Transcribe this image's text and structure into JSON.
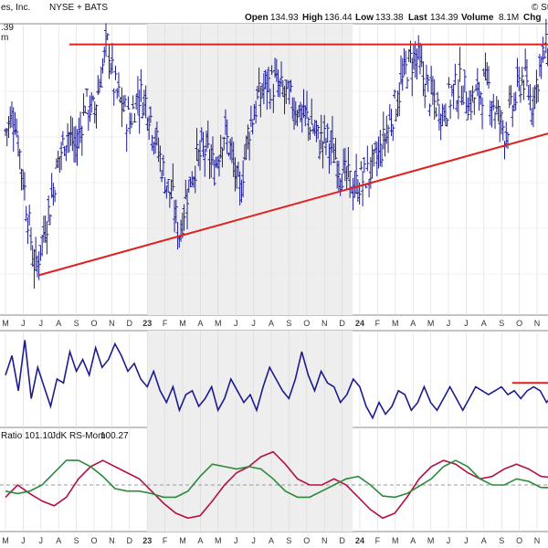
{
  "header": {
    "company": "es, Inc.",
    "exchange": "NYSE + BATS",
    "open_label": "Open",
    "open": "134.93",
    "high_label": "High",
    "high": "136.44",
    "low_label": "Low",
    "low": "133.38",
    "last_label": "Last",
    "last": "134.39",
    "volume_label": "Volume",
    "volume": "8.1M",
    "chg_label": "Chg",
    "watermark": "© St",
    "price_tag": ".39",
    "panel_tag": "m"
  },
  "indicator_legend": {
    "ratio_label": "Ratio",
    "ratio_value": "101.10",
    "mom_label": "JdK RS-Mom",
    "mom_value": "100.27"
  },
  "month_labels": [
    "M",
    "J",
    "J",
    "A",
    "S",
    "O",
    "N",
    "D",
    "23",
    "F",
    "M",
    "A",
    "M",
    "J",
    "J",
    "A",
    "S",
    "O",
    "N",
    "D",
    "24",
    "F",
    "M",
    "A",
    "M",
    "J",
    "J",
    "A",
    "S",
    "O",
    "N"
  ],
  "colors": {
    "price_bars": "#1c1c8f",
    "trendline": "#e02020",
    "ratio_line": "#b3123f",
    "momentum_line": "#2a8a3a",
    "shade": "#eeeeee"
  },
  "chart_data": [
    {
      "type": "ohlc",
      "x": [
        "2022-05",
        "2022-06",
        "2022-07",
        "2022-08",
        "2022-09",
        "2022-10",
        "2022-11",
        "2022-12",
        "2023-01",
        "2023-02",
        "2023-03",
        "2023-04",
        "2023-05",
        "2023-06",
        "2023-07",
        "2023-08",
        "2023-09",
        "2023-10",
        "2023-11",
        "2023-12",
        "2024-01",
        "2024-02",
        "2024-03",
        "2024-04",
        "2024-05",
        "2024-06",
        "2024-07",
        "2024-08",
        "2024-09",
        "2024-10",
        "2024-11"
      ],
      "close_trend": [
        [
          0,
          118
        ],
        [
          0.5,
          122
        ],
        [
          1.0,
          108
        ],
        [
          1.4,
          96
        ],
        [
          1.7,
          88
        ],
        [
          2.0,
          94
        ],
        [
          2.5,
          102
        ],
        [
          3.0,
          112
        ],
        [
          3.5,
          118
        ],
        [
          4.0,
          114
        ],
        [
          4.5,
          124
        ],
        [
          5.0,
          122
        ],
        [
          5.5,
          132
        ],
        [
          5.8,
          137
        ],
        [
          6.1,
          128
        ],
        [
          6.5,
          124
        ],
        [
          7.0,
          120
        ],
        [
          7.5,
          126
        ],
        [
          8.0,
          124
        ],
        [
          8.5,
          116
        ],
        [
          9.0,
          108
        ],
        [
          9.4,
          104
        ],
        [
          9.8,
          96
        ],
        [
          10.3,
          106
        ],
        [
          10.8,
          112
        ],
        [
          11.3,
          114
        ],
        [
          11.8,
          110
        ],
        [
          12.3,
          118
        ],
        [
          12.7,
          114
        ],
        [
          13.2,
          104
        ],
        [
          13.7,
          118
        ],
        [
          14.2,
          124
        ],
        [
          14.7,
          128
        ],
        [
          15.2,
          128
        ],
        [
          15.7,
          126
        ],
        [
          16.2,
          124
        ],
        [
          16.7,
          122
        ],
        [
          17.2,
          120
        ],
        [
          17.7,
          116
        ],
        [
          18.2,
          116
        ],
        [
          18.7,
          112
        ],
        [
          19.2,
          108
        ],
        [
          19.7,
          106
        ],
        [
          20.2,
          108
        ],
        [
          20.7,
          110
        ],
        [
          21.2,
          114
        ],
        [
          21.7,
          120
        ],
        [
          22.2,
          126
        ],
        [
          22.7,
          132
        ],
        [
          23.2,
          134
        ],
        [
          23.7,
          128
        ],
        [
          24.2,
          124
        ],
        [
          24.7,
          122
        ],
        [
          25.2,
          126
        ],
        [
          25.7,
          128
        ],
        [
          26.2,
          124
        ],
        [
          26.7,
          126
        ],
        [
          27.2,
          128
        ],
        [
          27.7,
          122
        ],
        [
          28.2,
          118
        ],
        [
          28.7,
          124
        ],
        [
          29.2,
          130
        ],
        [
          29.7,
          124
        ],
        [
          30.2,
          132
        ],
        [
          30.6,
          136
        ],
        [
          30.9,
          134.39
        ]
      ],
      "resistance_line": {
        "x": [
          3.6,
          30.9
        ],
        "y": [
          136.4,
          136.4
        ]
      },
      "support_line": {
        "x": [
          1.9,
          30.9
        ],
        "y": [
          87.5,
          117.5
        ]
      },
      "ylim": [
        80,
        140
      ]
    },
    {
      "type": "line",
      "series": [
        {
          "values": [
            0.5,
            0.75,
            0.3,
            0.95,
            0.2,
            0.6,
            0.35,
            0.1,
            0.45,
            0.4,
            0.8,
            0.55,
            0.7,
            0.5,
            0.85,
            0.6,
            0.7,
            0.9,
            0.75,
            0.55,
            0.65,
            0.45,
            0.35,
            0.55,
            0.3,
            0.15,
            0.35,
            0.05,
            0.25,
            0.3,
            0.1,
            0.2,
            0.35,
            0.05,
            0.2,
            0.45,
            0.3,
            0.15,
            0.25,
            0.05,
            0.35,
            0.6,
            0.45,
            0.3,
            0.2,
            0.45,
            0.8,
            0.5,
            0.3,
            0.55,
            0.4,
            0.35,
            0.15,
            0.25,
            0.45,
            0.35,
            0.1,
            -0.05,
            0.15,
            0.0,
            0.1,
            0.3,
            0.25,
            0.05,
            0.15,
            0.35,
            0.15,
            0.05,
            0.2,
            0.35,
            0.2,
            0.05,
            0.2,
            0.35,
            0.3,
            0.25,
            0.3,
            0.35,
            0.25,
            0.3,
            0.2,
            0.3,
            0.35,
            0.3,
            0.15,
            0.25
          ]
        }
      ],
      "marker": {
        "y": 0.4
      },
      "ylim": [
        -0.1,
        1.0
      ]
    },
    {
      "type": "line",
      "series": [
        {
          "name": "Ratio",
          "values": [
            99.5,
            100.5,
            99.8,
            99.2,
            98.8,
            99.5,
            101.0,
            102.0,
            102.5,
            102.0,
            101.5,
            101.0,
            100.0,
            99.0,
            98.2,
            97.8,
            98.0,
            99.2,
            100.5,
            101.5,
            102.0,
            102.8,
            103.2,
            102.2,
            101.0,
            100.5,
            100.5,
            101.0,
            100.5,
            99.5,
            98.5,
            97.8,
            98.2,
            99.5,
            101.0,
            102.0,
            102.5,
            102.2,
            101.5,
            101.0,
            101.2,
            101.8,
            102.2,
            101.8,
            101.2,
            101.1
          ]
        },
        {
          "name": "JdK RS-Mom",
          "values": [
            100.0,
            99.8,
            100.0,
            100.5,
            101.5,
            102.5,
            102.5,
            102.0,
            101.2,
            100.2,
            100.0,
            100.0,
            99.8,
            99.5,
            99.5,
            100.0,
            101.2,
            102.2,
            102.0,
            101.8,
            102.0,
            101.8,
            101.0,
            100.0,
            99.5,
            99.5,
            100.0,
            100.5,
            101.0,
            101.2,
            100.5,
            99.6,
            99.5,
            99.8,
            100.4,
            101.0,
            102.0,
            102.5,
            102.0,
            101.0,
            100.5,
            100.5,
            101.0,
            100.8,
            100.3,
            100.27
          ]
        }
      ],
      "ylim": [
        97.0,
        104.0
      ],
      "reference_y": 100.5
    }
  ]
}
